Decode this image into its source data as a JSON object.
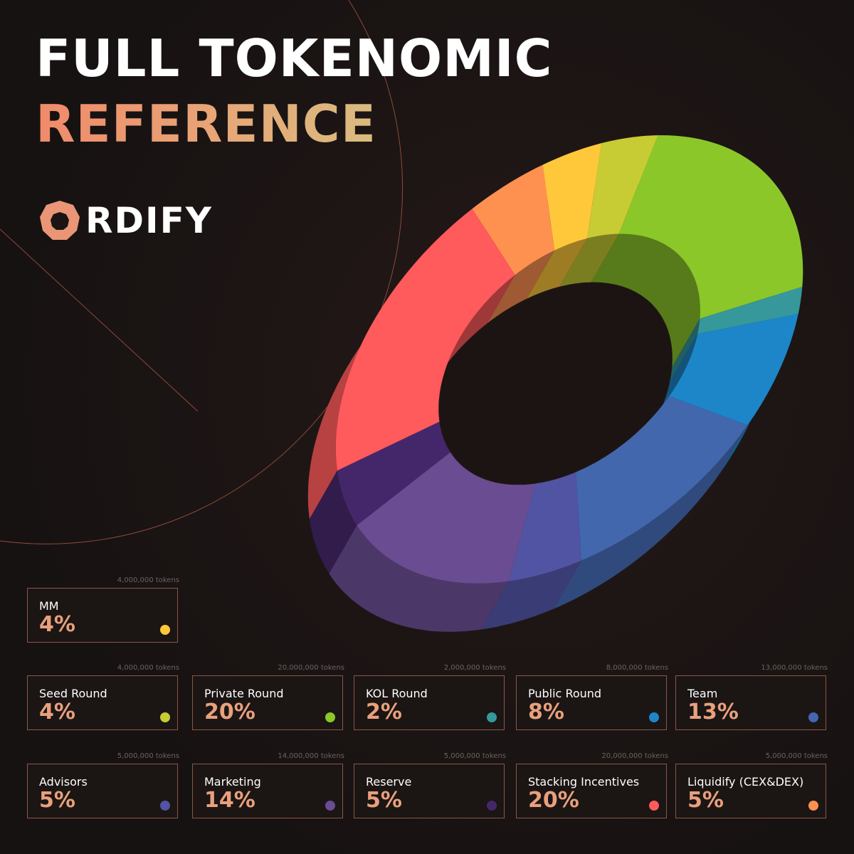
{
  "header": {
    "title_line1": "FULL TOKENOMIC",
    "title_line2": "REFERENCE"
  },
  "brand": {
    "logo_text": "RDIFY"
  },
  "colors": {
    "background": "#1a1413",
    "accent": "#e9a07c",
    "card_border": "#8b5746"
  },
  "chart_data": {
    "type": "pie",
    "style": "3d-donut",
    "legend_placement": "bottom",
    "slices": [
      {
        "name": "MM",
        "percent": 4,
        "tokens": "4,000,000 tokens",
        "value_label": "4%",
        "color": "#ffc83a"
      },
      {
        "name": "Seed Round",
        "percent": 4,
        "tokens": "4,000,000 tokens",
        "value_label": "4%",
        "color": "#c7cb34"
      },
      {
        "name": "Private Round",
        "percent": 20,
        "tokens": "20,000,000 tokens",
        "value_label": "20%",
        "color": "#8cc72a"
      },
      {
        "name": "KOL Round",
        "percent": 2,
        "tokens": "2,000,000 tokens",
        "value_label": "2%",
        "color": "#36989a"
      },
      {
        "name": "Public Round",
        "percent": 8,
        "tokens": "8,000,000 tokens",
        "value_label": "8%",
        "color": "#1c86c9"
      },
      {
        "name": "Team",
        "percent": 13,
        "tokens": "13,000,000 tokens",
        "value_label": "13%",
        "color": "#4267ad"
      },
      {
        "name": "Advisors",
        "percent": 5,
        "tokens": "5,000,000 tokens",
        "value_label": "5%",
        "color": "#5154a3"
      },
      {
        "name": "Marketing",
        "percent": 14,
        "tokens": "14,000,000 tokens",
        "value_label": "14%",
        "color": "#6a4c92"
      },
      {
        "name": "Reserve",
        "percent": 5,
        "tokens": "5,000,000 tokens",
        "value_label": "5%",
        "color": "#44276a"
      },
      {
        "name": "Stacking Incentives",
        "percent": 20,
        "tokens": "20,000,000 tokens",
        "value_label": "20%",
        "color": "#ff5a5c"
      },
      {
        "name": "Liquidify (CEX&DEX)",
        "percent": 5,
        "tokens": "5,000,000 tokens",
        "value_label": "5%",
        "color": "#ff9150"
      }
    ]
  }
}
